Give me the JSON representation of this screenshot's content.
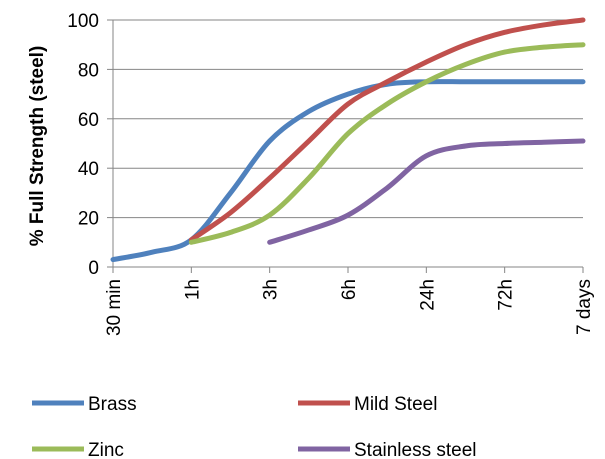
{
  "chart_data": {
    "type": "line",
    "title": "",
    "xlabel": "",
    "ylabel": "% Full Strength (steel)",
    "categories": [
      "30 min",
      "1h",
      "3h",
      "6h",
      "24h",
      "72h",
      "7 days"
    ],
    "ylim": [
      0,
      100
    ],
    "yticks": [
      0,
      20,
      40,
      60,
      80,
      100
    ],
    "grid": "horizontal",
    "legend_position": "bottom",
    "series": [
      {
        "name": "Brass",
        "color": "#4F81BD",
        "x": [
          0,
          0.5,
          1,
          1.5,
          2,
          2.5,
          3,
          3.5,
          4,
          4.5,
          5,
          5.5,
          6
        ],
        "values": [
          3,
          6,
          11,
          30,
          51,
          63,
          70,
          74,
          75,
          75,
          75,
          75,
          75
        ]
      },
      {
        "name": "Mild Steel",
        "color": "#C0504D",
        "x": [
          1,
          1.5,
          2,
          2.5,
          3,
          3.5,
          4,
          4.5,
          5,
          5.5,
          6
        ],
        "values": [
          11,
          22,
          36,
          51,
          66,
          75,
          83,
          90,
          95,
          98,
          100
        ]
      },
      {
        "name": "Zinc",
        "color": "#9BBB59",
        "x": [
          1,
          1.5,
          2,
          2.5,
          3,
          3.5,
          4,
          4.5,
          5,
          5.5,
          6
        ],
        "values": [
          10,
          14,
          21,
          36,
          54,
          66,
          75,
          82,
          87,
          89,
          90
        ]
      },
      {
        "name": "Stainless steel",
        "color": "#8064A2",
        "x": [
          2,
          2.5,
          3,
          3.5,
          4,
          4.5,
          5,
          5.5,
          6
        ],
        "values": [
          10,
          15,
          21,
          32,
          45,
          49,
          50,
          50.5,
          51
        ]
      }
    ]
  }
}
